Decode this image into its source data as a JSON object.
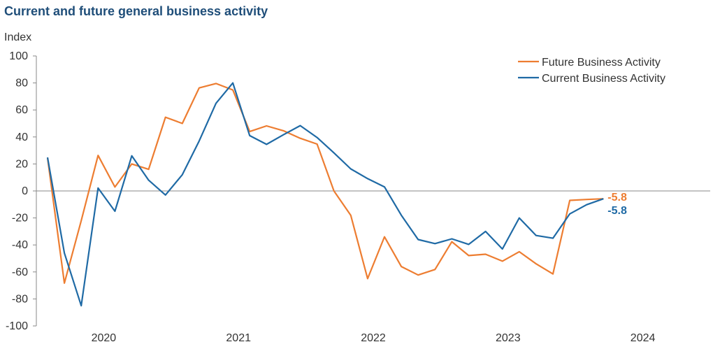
{
  "chart_data": {
    "type": "line",
    "title": "Current and future general business activity",
    "ylabel": "Index",
    "xlabel": "",
    "ylim": [
      -100,
      100
    ],
    "yticks": [
      100,
      80,
      60,
      40,
      20,
      0,
      -20,
      -40,
      -60,
      -80,
      -100
    ],
    "xlim": [
      2019.5,
      2024.5
    ],
    "xticks": [
      {
        "label": "2020",
        "value": 2020.0
      },
      {
        "label": "2021",
        "value": 2021.0
      },
      {
        "label": "2022",
        "value": 2022.0
      },
      {
        "label": "2023",
        "value": 2023.0
      },
      {
        "label": "2024",
        "value": 2024.0
      }
    ],
    "legend_position": "top-right",
    "series": [
      {
        "name": "Future Business Activity",
        "color": "#ed7d31",
        "end_label": "-5.8",
        "points": [
          [
            2019.583,
            24.5
          ],
          [
            2019.708,
            -68.3
          ],
          [
            2019.833,
            -22
          ],
          [
            2019.958,
            26.3
          ],
          [
            2020.083,
            2.9
          ],
          [
            2020.208,
            20
          ],
          [
            2020.333,
            16
          ],
          [
            2020.458,
            54.6
          ],
          [
            2020.583,
            50
          ],
          [
            2020.708,
            76.3
          ],
          [
            2020.833,
            79.6
          ],
          [
            2020.958,
            74.8
          ],
          [
            2021.083,
            44
          ],
          [
            2021.208,
            48.2
          ],
          [
            2021.333,
            44.6
          ],
          [
            2021.458,
            39
          ],
          [
            2021.583,
            34.7
          ],
          [
            2021.708,
            0
          ],
          [
            2021.833,
            -18.1
          ],
          [
            2021.958,
            -65
          ],
          [
            2022.083,
            -34
          ],
          [
            2022.208,
            -56
          ],
          [
            2022.333,
            -62.3
          ],
          [
            2022.458,
            -58.2
          ],
          [
            2022.583,
            -37.6
          ],
          [
            2022.708,
            -47.9
          ],
          [
            2022.833,
            -46.9
          ],
          [
            2022.958,
            -52
          ],
          [
            2023.083,
            -45
          ],
          [
            2023.208,
            -54
          ],
          [
            2023.333,
            -61.5
          ],
          [
            2023.458,
            -7
          ],
          [
            2023.583,
            -6.3
          ],
          [
            2023.708,
            -5.8
          ]
        ]
      },
      {
        "name": "Current Business Activity",
        "color": "#1f6aa5",
        "end_label": "-5.8",
        "points": [
          [
            2019.583,
            24.8
          ],
          [
            2019.708,
            -46
          ],
          [
            2019.833,
            -85
          ],
          [
            2019.958,
            2.1
          ],
          [
            2020.083,
            -15
          ],
          [
            2020.208,
            26
          ],
          [
            2020.333,
            8
          ],
          [
            2020.458,
            -3
          ],
          [
            2020.583,
            12
          ],
          [
            2020.708,
            37
          ],
          [
            2020.833,
            64.9
          ],
          [
            2020.958,
            80
          ],
          [
            2021.083,
            41
          ],
          [
            2021.208,
            34.5
          ],
          [
            2021.333,
            41.6
          ],
          [
            2021.458,
            48.4
          ],
          [
            2021.583,
            39.6
          ],
          [
            2021.708,
            28.2
          ],
          [
            2021.833,
            16.3
          ],
          [
            2021.958,
            9.1
          ],
          [
            2022.083,
            3
          ],
          [
            2022.208,
            -18
          ],
          [
            2022.333,
            -36
          ],
          [
            2022.458,
            -39
          ],
          [
            2022.583,
            -35.5
          ],
          [
            2022.708,
            -39.6
          ],
          [
            2022.833,
            -30
          ],
          [
            2022.958,
            -43
          ],
          [
            2023.083,
            -20
          ],
          [
            2023.208,
            -33
          ],
          [
            2023.333,
            -35
          ],
          [
            2023.458,
            -17
          ],
          [
            2023.583,
            -10.2
          ],
          [
            2023.708,
            -5.8
          ]
        ]
      }
    ]
  }
}
